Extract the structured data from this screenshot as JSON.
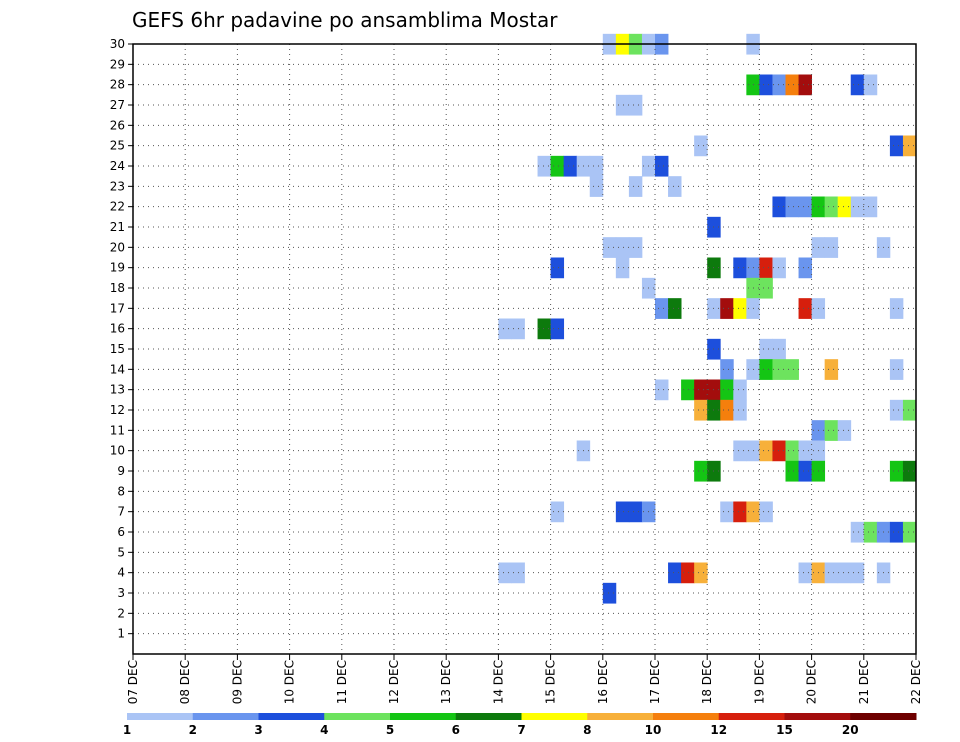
{
  "chart_data": {
    "type": "heatmap",
    "title": "GEFS 6hr padavine po ansamblima Mostar",
    "xlabel": "",
    "ylabel": "",
    "x_tick_labels": [
      "07 DEC",
      "08 DEC",
      "09 DEC",
      "10 DEC",
      "11 DEC",
      "12 DEC",
      "13 DEC",
      "14 DEC",
      "15 DEC",
      "16 DEC",
      "17 DEC",
      "18 DEC",
      "19 DEC",
      "20 DEC",
      "21 DEC",
      "22 DEC"
    ],
    "x_range_days": [
      0,
      15
    ],
    "y_tick_labels": [
      "1",
      "2",
      "3",
      "4",
      "5",
      "6",
      "7",
      "8",
      "9",
      "10",
      "11",
      "12",
      "13",
      "14",
      "15",
      "16",
      "17",
      "18",
      "19",
      "20",
      "21",
      "22",
      "23",
      "24",
      "25",
      "26",
      "27",
      "28",
      "29",
      "30"
    ],
    "y_range": [
      0,
      30
    ],
    "grid": true,
    "colorbar": {
      "labels": [
        "1",
        "2",
        "3",
        "4",
        "5",
        "6",
        "7",
        "8",
        "10",
        "12",
        "15",
        "20"
      ],
      "colors": [
        "#aac4f5",
        "#6a95ee",
        "#1d4fdc",
        "#6de35e",
        "#14c514",
        "#0d7a0d",
        "#ffff00",
        "#f7b03a",
        "#f57f0d",
        "#d61f0d",
        "#a30d0d",
        "#6e0000"
      ]
    },
    "cells": [
      {
        "m": 30,
        "t": [
          [
            9.0,
            "#aac4f5"
          ],
          [
            9.25,
            "#ffff00"
          ],
          [
            9.5,
            "#6de35e"
          ],
          [
            9.75,
            "#aac4f5"
          ],
          [
            10.0,
            "#6a95ee"
          ],
          [
            11.75,
            "#aac4f5"
          ]
        ]
      },
      {
        "m": 28,
        "t": [
          [
            11.75,
            "#14c514"
          ],
          [
            12.0,
            "#1d4fdc"
          ],
          [
            12.25,
            "#6a95ee"
          ],
          [
            12.5,
            "#f57f0d"
          ],
          [
            12.75,
            "#a30d0d"
          ],
          [
            13.75,
            "#1d4fdc"
          ],
          [
            14.0,
            "#aac4f5"
          ]
        ]
      },
      {
        "m": 27,
        "t": [
          [
            9.25,
            "#aac4f5"
          ],
          [
            9.5,
            "#aac4f5"
          ]
        ]
      },
      {
        "m": 25,
        "t": [
          [
            10.75,
            "#aac4f5"
          ],
          [
            14.5,
            "#1d4fdc"
          ],
          [
            14.75,
            "#f7b03a"
          ]
        ]
      },
      {
        "m": 24,
        "t": [
          [
            7.75,
            "#aac4f5"
          ],
          [
            8.0,
            "#14c514"
          ],
          [
            8.25,
            "#1d4fdc"
          ],
          [
            8.5,
            "#aac4f5"
          ],
          [
            8.75,
            "#aac4f5"
          ],
          [
            9.75,
            "#aac4f5"
          ],
          [
            10.0,
            "#1d4fdc"
          ]
        ]
      },
      {
        "m": 23,
        "t": [
          [
            8.75,
            "#aac4f5"
          ],
          [
            9.5,
            "#aac4f5"
          ],
          [
            10.25,
            "#aac4f5"
          ]
        ]
      },
      {
        "m": 22,
        "t": [
          [
            12.25,
            "#1d4fdc"
          ],
          [
            12.5,
            "#6a95ee"
          ],
          [
            12.75,
            "#6a95ee"
          ],
          [
            13.0,
            "#14c514"
          ],
          [
            13.25,
            "#6de35e"
          ],
          [
            13.5,
            "#ffff00"
          ],
          [
            13.75,
            "#aac4f5"
          ],
          [
            14.0,
            "#aac4f5"
          ]
        ]
      },
      {
        "m": 21,
        "t": [
          [
            11.0,
            "#1d4fdc"
          ]
        ]
      },
      {
        "m": 20,
        "t": [
          [
            9.0,
            "#aac4f5"
          ],
          [
            9.25,
            "#aac4f5"
          ],
          [
            9.5,
            "#aac4f5"
          ],
          [
            13.0,
            "#aac4f5"
          ],
          [
            13.25,
            "#aac4f5"
          ],
          [
            14.25,
            "#aac4f5"
          ]
        ]
      },
      {
        "m": 19,
        "t": [
          [
            8.0,
            "#1d4fdc"
          ],
          [
            9.25,
            "#aac4f5"
          ],
          [
            11.0,
            "#0d7a0d"
          ],
          [
            11.5,
            "#1d4fdc"
          ],
          [
            11.75,
            "#6a95ee"
          ],
          [
            12.0,
            "#d61f0d"
          ],
          [
            12.25,
            "#aac4f5"
          ],
          [
            12.75,
            "#6a95ee"
          ]
        ]
      },
      {
        "m": 18,
        "t": [
          [
            9.75,
            "#aac4f5"
          ],
          [
            11.75,
            "#6de35e"
          ],
          [
            12.0,
            "#6de35e"
          ]
        ]
      },
      {
        "m": 17,
        "t": [
          [
            10.0,
            "#6a95ee"
          ],
          [
            10.25,
            "#0d7a0d"
          ],
          [
            11.0,
            "#aac4f5"
          ],
          [
            11.25,
            "#a30d0d"
          ],
          [
            11.5,
            "#ffff00"
          ],
          [
            11.75,
            "#aac4f5"
          ],
          [
            12.75,
            "#d61f0d"
          ],
          [
            13.0,
            "#aac4f5"
          ],
          [
            14.5,
            "#aac4f5"
          ]
        ]
      },
      {
        "m": 16,
        "t": [
          [
            7.0,
            "#aac4f5"
          ],
          [
            7.25,
            "#aac4f5"
          ],
          [
            7.75,
            "#0d7a0d"
          ],
          [
            8.0,
            "#1d4fdc"
          ]
        ]
      },
      {
        "m": 15,
        "t": [
          [
            11.0,
            "#1d4fdc"
          ],
          [
            12.0,
            "#aac4f5"
          ],
          [
            12.25,
            "#aac4f5"
          ]
        ]
      },
      {
        "m": 14,
        "t": [
          [
            11.25,
            "#6a95ee"
          ],
          [
            11.75,
            "#aac4f5"
          ],
          [
            12.0,
            "#14c514"
          ],
          [
            12.25,
            "#6de35e"
          ],
          [
            12.5,
            "#6de35e"
          ],
          [
            13.25,
            "#f7b03a"
          ],
          [
            14.5,
            "#aac4f5"
          ]
        ]
      },
      {
        "m": 13,
        "t": [
          [
            10.0,
            "#aac4f5"
          ],
          [
            10.5,
            "#14c514"
          ],
          [
            10.75,
            "#a30d0d"
          ],
          [
            11.0,
            "#a30d0d"
          ],
          [
            11.25,
            "#14c514"
          ],
          [
            11.5,
            "#aac4f5"
          ]
        ]
      },
      {
        "m": 12,
        "t": [
          [
            10.75,
            "#f7b03a"
          ],
          [
            11.0,
            "#0d7a0d"
          ],
          [
            11.25,
            "#f57f0d"
          ],
          [
            11.5,
            "#aac4f5"
          ],
          [
            14.5,
            "#aac4f5"
          ],
          [
            14.75,
            "#6de35e"
          ]
        ]
      },
      {
        "m": 11,
        "t": [
          [
            13.0,
            "#6a95ee"
          ],
          [
            13.25,
            "#6de35e"
          ],
          [
            13.5,
            "#aac4f5"
          ]
        ]
      },
      {
        "m": 10,
        "t": [
          [
            8.5,
            "#aac4f5"
          ],
          [
            11.5,
            "#aac4f5"
          ],
          [
            11.75,
            "#aac4f5"
          ],
          [
            12.0,
            "#f7b03a"
          ],
          [
            12.25,
            "#d61f0d"
          ],
          [
            12.5,
            "#6de35e"
          ],
          [
            12.75,
            "#aac4f5"
          ],
          [
            13.0,
            "#aac4f5"
          ]
        ]
      },
      {
        "m": 9,
        "t": [
          [
            10.75,
            "#14c514"
          ],
          [
            11.0,
            "#0d7a0d"
          ],
          [
            12.5,
            "#14c514"
          ],
          [
            12.75,
            "#1d4fdc"
          ],
          [
            13.0,
            "#14c514"
          ],
          [
            14.5,
            "#14c514"
          ],
          [
            14.75,
            "#0d7a0d"
          ]
        ]
      },
      {
        "m": 7,
        "t": [
          [
            8.0,
            "#aac4f5"
          ],
          [
            9.25,
            "#1d4fdc"
          ],
          [
            9.5,
            "#1d4fdc"
          ],
          [
            9.75,
            "#6a95ee"
          ],
          [
            11.25,
            "#aac4f5"
          ],
          [
            11.5,
            "#d61f0d"
          ],
          [
            11.75,
            "#f7b03a"
          ],
          [
            12.0,
            "#aac4f5"
          ]
        ]
      },
      {
        "m": 6,
        "t": [
          [
            13.75,
            "#aac4f5"
          ],
          [
            14.0,
            "#6de35e"
          ],
          [
            14.25,
            "#6a95ee"
          ],
          [
            14.5,
            "#1d4fdc"
          ],
          [
            14.75,
            "#6de35e"
          ]
        ]
      },
      {
        "m": 4,
        "t": [
          [
            7.0,
            "#aac4f5"
          ],
          [
            7.25,
            "#aac4f5"
          ],
          [
            10.25,
            "#1d4fdc"
          ],
          [
            10.5,
            "#d61f0d"
          ],
          [
            10.75,
            "#f7b03a"
          ],
          [
            12.75,
            "#aac4f5"
          ],
          [
            13.0,
            "#f7b03a"
          ],
          [
            13.25,
            "#aac4f5"
          ],
          [
            13.5,
            "#aac4f5"
          ],
          [
            13.75,
            "#aac4f5"
          ],
          [
            14.25,
            "#aac4f5"
          ]
        ]
      },
      {
        "m": 3,
        "t": [
          [
            9.0,
            "#1d4fdc"
          ]
        ]
      }
    ]
  }
}
